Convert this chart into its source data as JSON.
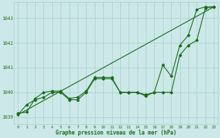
{
  "xlabel": "Graphe pression niveau de la mer (hPa)",
  "x": [
    0,
    1,
    2,
    3,
    4,
    5,
    6,
    7,
    8,
    9,
    10,
    11,
    12,
    13,
    14,
    15,
    16,
    17,
    18,
    19,
    20,
    21,
    22,
    23
  ],
  "line1": [
    1039.1,
    1039.5,
    1039.7,
    1039.8,
    1040.0,
    1040.0,
    1039.7,
    1039.7,
    1040.0,
    1040.55,
    1040.55,
    1040.55,
    1040.0,
    1040.0,
    1040.0,
    1039.9,
    1040.0,
    1041.1,
    1040.65,
    1041.9,
    1042.3,
    1043.35,
    1043.45,
    1043.45
  ],
  "line2": [
    1039.15,
    1039.2,
    1039.75,
    1040.0,
    1040.05,
    1040.05,
    1039.75,
    1039.8,
    1040.05,
    1040.6,
    1040.6,
    1040.6,
    1040.0,
    1040.0,
    1040.0,
    1039.85,
    1040.0,
    1040.0,
    1040.0,
    1041.5,
    1041.9,
    1042.1,
    1043.4,
    1043.45
  ],
  "line_trend": [
    1039.1,
    1043.45
  ],
  "line_trend_x": [
    0,
    23
  ],
  "bg_color": "#cce8e8",
  "line_color": "#1a6b1a",
  "grid_color": "#a8cccc",
  "label_color": "#1a6b1a",
  "ylim_min": 1038.7,
  "ylim_max": 1043.65,
  "yticks": [
    1039,
    1040,
    1041,
    1042,
    1043
  ],
  "xticks": [
    0,
    1,
    2,
    3,
    4,
    5,
    6,
    7,
    8,
    9,
    10,
    11,
    12,
    13,
    14,
    15,
    16,
    17,
    18,
    19,
    20,
    21,
    22,
    23
  ]
}
